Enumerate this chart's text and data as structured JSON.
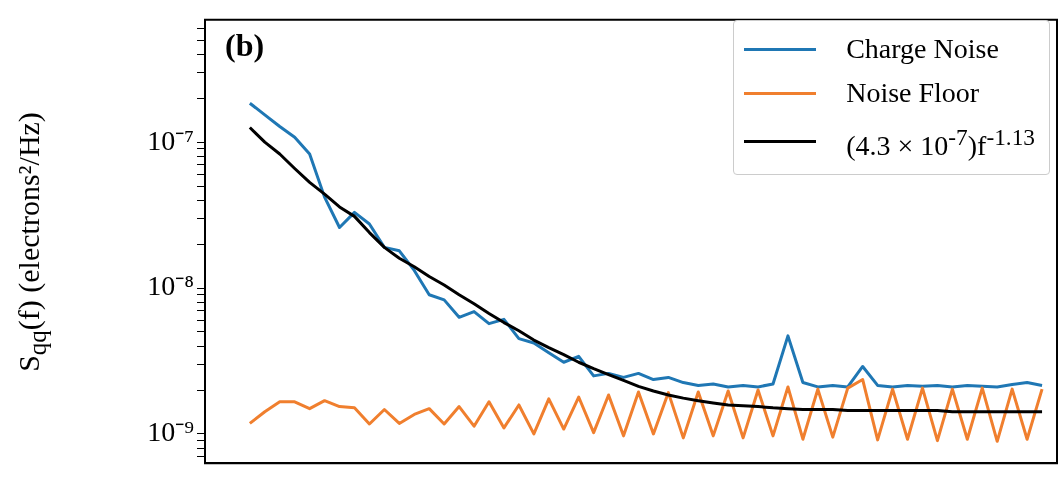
{
  "chart_data": {
    "type": "line",
    "ylabel": "S$_{qq}$(f) (electrons²/Hz)",
    "annotations": [
      "(b)"
    ],
    "log": "y",
    "grid": false,
    "legend": "top right",
    "tick_labels": "y",
    "categories": [
      null,
      null,
      null,
      null,
      null,
      null,
      null,
      null,
      null,
      null,
      null,
      null,
      null,
      null,
      null,
      null,
      null,
      null,
      null,
      null,
      null,
      null,
      null,
      null,
      null,
      null,
      null,
      null,
      null,
      null,
      null,
      null,
      null,
      null,
      null,
      null,
      null,
      null,
      null,
      null,
      null,
      null,
      null,
      null,
      null,
      null,
      null,
      null,
      null,
      null,
      null,
      null,
      null,
      null,
      null,
      null,
      null,
      null
    ],
    "ylim": [
      6.3e-10,
      6.9e-07
    ],
    "yticks": [
      {
        "value": 1e-09,
        "label": "10⁻⁹"
      },
      {
        "value": 1e-08,
        "label": "10⁻⁸"
      },
      {
        "value": 1e-07,
        "label": "10⁻⁷"
      },
      {
        "value": 7e-10,
        "label": null
      },
      {
        "value": 8e-10,
        "label": null
      },
      {
        "value": 9e-10,
        "label": null
      },
      {
        "value": 2e-09,
        "label": null
      },
      {
        "value": 3e-09,
        "label": null
      },
      {
        "value": 4e-09,
        "label": null
      },
      {
        "value": 5e-09,
        "label": null
      },
      {
        "value": 6e-09,
        "label": null
      },
      {
        "value": 7e-09,
        "label": null
      },
      {
        "value": 8e-09,
        "label": null
      },
      {
        "value": 9e-09,
        "label": null
      },
      {
        "value": 2e-08,
        "label": null
      },
      {
        "value": 3e-08,
        "label": null
      },
      {
        "value": 4e-08,
        "label": null
      },
      {
        "value": 5e-08,
        "label": null
      },
      {
        "value": 6e-08,
        "label": null
      },
      {
        "value": 7e-08,
        "label": null
      },
      {
        "value": 8e-08,
        "label": null
      },
      {
        "value": 9e-08,
        "label": null
      },
      {
        "value": 2e-07,
        "label": null
      },
      {
        "value": 3e-07,
        "label": null
      },
      {
        "value": 4e-07,
        "label": null
      },
      {
        "value": 5e-07,
        "label": null
      },
      {
        "value": 6e-07,
        "label": null
      }
    ],
    "series": [
      {
        "name": "Charge Noise",
        "color": "#1f77b4",
        "values": [
          null,
          null,
          null,
          1.85e-07,
          1.54e-07,
          1.28e-07,
          1.08e-07,
          8.3e-08,
          4.2e-08,
          2.6e-08,
          3.3e-08,
          2.75e-08,
          1.9e-08,
          1.8e-08,
          1.32e-08,
          9e-09,
          8.3e-09,
          6.3e-09,
          6.9e-09,
          5.7e-09,
          6.1e-09,
          4.5e-09,
          4.2e-09,
          3.6e-09,
          3.1e-09,
          3.4e-09,
          2.5e-09,
          2.6e-09,
          2.44e-09,
          2.6e-09,
          2.36e-09,
          2.44e-09,
          2.25e-09,
          2.15e-09,
          2.2e-09,
          2.1e-09,
          2.15e-09,
          2.1e-09,
          2.2e-09,
          4.7e-09,
          2.25e-09,
          2.1e-09,
          2.15e-09,
          2.1e-09,
          2.9e-09,
          2.15e-09,
          2.1e-09,
          2.15e-09,
          2.12e-09,
          2.15e-09,
          2.1e-09,
          2.15e-09,
          2.12e-09,
          2.1e-09,
          2.18e-09,
          2.25e-09,
          2.15e-09,
          null
        ]
      },
      {
        "name": "Noise Floor",
        "color": "#f07f2e",
        "values": [
          null,
          null,
          null,
          1.18e-09,
          1.42e-09,
          1.66e-09,
          1.66e-09,
          1.49e-09,
          1.69e-09,
          1.54e-09,
          1.51e-09,
          1.17e-09,
          1.47e-09,
          1.18e-09,
          1.36e-09,
          1.49e-09,
          1.17e-09,
          1.54e-09,
          1.13e-09,
          1.66e-09,
          1.1e-09,
          1.58e-09,
          1e-09,
          1.74e-09,
          1.08e-09,
          1.79e-09,
          1.02e-09,
          1.85e-09,
          9.7e-10,
          1.94e-09,
          1e-09,
          1.92e-09,
          9.4e-10,
          1.94e-09,
          9.7e-10,
          1.97e-09,
          9.4e-10,
          2e-09,
          9.7e-10,
          2.1e-09,
          9.2e-10,
          2.03e-09,
          9.5e-10,
          2.06e-09,
          2.36e-09,
          9.1e-10,
          2.03e-09,
          9.2e-10,
          2.06e-09,
          9e-10,
          2.03e-09,
          9.2e-10,
          2.06e-09,
          8.9e-10,
          2.03e-09,
          9.2e-10,
          2.03e-09,
          null
        ]
      },
      {
        "name": "(4.3 × 10$^{-7}$)f$^{-1.13}$",
        "color": "#000000",
        "values": [
          null,
          null,
          null,
          1.26e-07,
          1e-07,
          8.3e-08,
          6.6e-08,
          5.3e-08,
          4.4e-08,
          3.6e-08,
          3.1e-08,
          2.4e-08,
          1.9e-08,
          1.6e-08,
          1.4e-08,
          1.2e-08,
          1.05e-08,
          9e-09,
          7.8e-09,
          6.7e-09,
          5.8e-09,
          5.1e-09,
          4.4e-09,
          3.9e-09,
          3.5e-09,
          3.1e-09,
          2.8e-09,
          2.55e-09,
          2.33e-09,
          2.12e-09,
          1.97e-09,
          1.85e-09,
          1.76e-09,
          1.69e-09,
          1.63e-09,
          1.58e-09,
          1.56e-09,
          1.54e-09,
          1.51e-09,
          1.49e-09,
          1.47e-09,
          1.47e-09,
          1.47e-09,
          1.45e-09,
          1.45e-09,
          1.45e-09,
          1.45e-09,
          1.45e-09,
          1.45e-09,
          1.45e-09,
          1.42e-09,
          1.42e-09,
          1.42e-09,
          1.42e-09,
          1.42e-09,
          1.42e-09,
          1.42e-09,
          null
        ]
      }
    ]
  }
}
